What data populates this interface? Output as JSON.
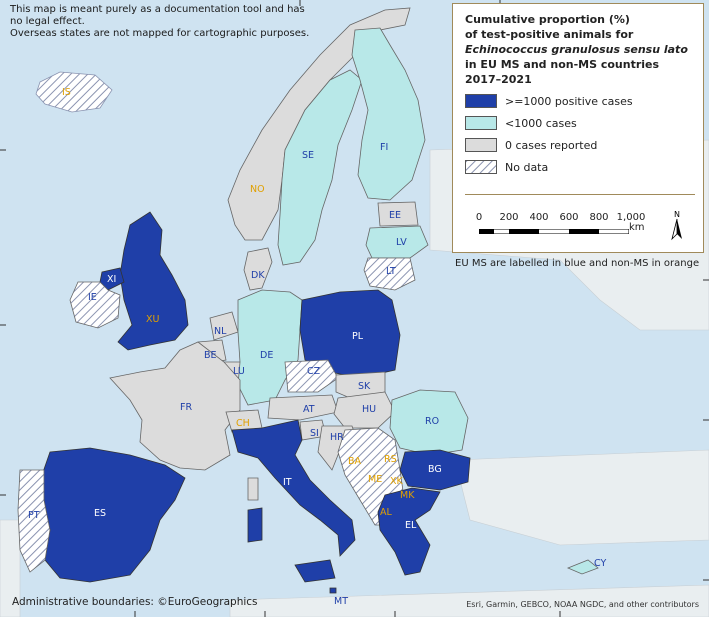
{
  "disclaimer": {
    "line1": "This map is meant purely as a documentation tool and has",
    "line2": "no legal effect.",
    "line3": "Overseas states are not mapped for cartographic purposes."
  },
  "legend": {
    "title_line1": "Cumulative proportion (%)",
    "title_line2": "of test-positive animals for",
    "title_line3_italic": "Echinococcus granulosus sensu lato",
    "title_line4": "in EU MS and non-MS countries",
    "title_line5": "2017–2021",
    "items": [
      {
        "label": ">=1000 positive cases",
        "color": "#1f3fa8"
      },
      {
        "label": "<1000 cases",
        "color": "#b8e8e8"
      },
      {
        "label": "0 cases reported",
        "color": "#dcdcdc"
      },
      {
        "label": "No data",
        "color": "hatch"
      }
    ],
    "scale_ticks": [
      "0",
      "200",
      "400",
      "600",
      "800",
      "1,000"
    ],
    "scale_unit": "km",
    "north": "N"
  },
  "ms_note": "EU MS are labelled in blue and non-MS in orange",
  "admin_boundaries": "Administrative boundaries: ©EuroGeographics",
  "credits": "Esri, Garmin, GEBCO, NOAA NGDC, and other contributors",
  "colors": {
    "sea": "#cfe3f1",
    "high": "#1f3fa8",
    "low": "#b8e8e8",
    "zero": "#dcdcdc",
    "ms_label": "#1f3fa8",
    "non_ms_label": "#e0a000"
  },
  "country_labels": {
    "IS": "IS",
    "NO": "NO",
    "SE": "SE",
    "FI": "FI",
    "EE": "EE",
    "LV": "LV",
    "LT": "LT",
    "DK": "DK",
    "XI": "XI",
    "IE": "IE",
    "XU": "XU",
    "NL": "NL",
    "BE": "BE",
    "LU": "LU",
    "DE": "DE",
    "PL": "PL",
    "CZ": "CZ",
    "SK": "SK",
    "FR": "FR",
    "AT": "AT",
    "CH": "CH",
    "HU": "HU",
    "RO": "RO",
    "SI": "SI",
    "HR": "HR",
    "BA": "BA",
    "RS": "RS",
    "BG": "BG",
    "IT": "IT",
    "ME": "ME",
    "XK": "XK",
    "MK": "MK",
    "AL": "AL",
    "EL": "EL",
    "PT": "PT",
    "ES": "ES",
    "MT": "MT",
    "CY": "CY"
  }
}
